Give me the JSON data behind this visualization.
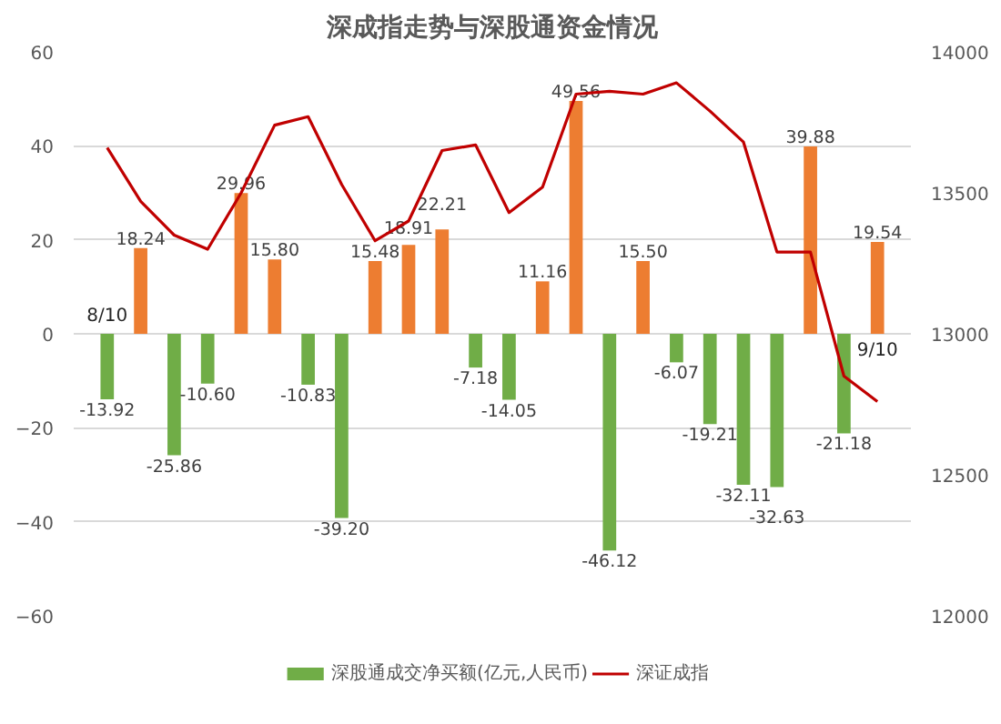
{
  "chart_data": {
    "type": "bar",
    "title": "深成指走势与深股通资金情况",
    "categories": [
      "8/10",
      null,
      null,
      null,
      null,
      null,
      null,
      null,
      null,
      null,
      null,
      null,
      null,
      null,
      null,
      null,
      null,
      null,
      null,
      null,
      null,
      null,
      null,
      "9/10"
    ],
    "series": [
      {
        "name": "深股通成交净买额(亿元,人民币)",
        "color": "#70ad47",
        "colors": [
          "#70ad47",
          "#ed7d31",
          "#70ad47",
          "#70ad47",
          "#ed7d31",
          "#ed7d31",
          "#70ad47",
          "#70ad47",
          "#ed7d31",
          "#ed7d31",
          "#ed7d31",
          "#70ad47",
          "#70ad47",
          "#ed7d31",
          "#ed7d31",
          "#70ad47",
          "#ed7d31",
          "#70ad47",
          "#70ad47",
          "#70ad47",
          "#70ad47",
          "#ed7d31",
          "#70ad47",
          "#ed7d31"
        ],
        "values": [
          -13.92,
          18.24,
          -25.86,
          -10.6,
          29.96,
          15.8,
          -10.83,
          -39.2,
          15.48,
          18.91,
          22.21,
          -7.18,
          -14.05,
          11.16,
          49.56,
          -46.12,
          15.5,
          -6.07,
          -19.21,
          -32.11,
          -32.63,
          39.88,
          -21.18,
          19.54
        ],
        "value_labels": [
          "-13.92",
          "18.24",
          "-25.86",
          "-10.60",
          "29.96",
          "15.80",
          "-10.83",
          "-39.20",
          "15.48",
          "18.91",
          "22.21",
          "-7.18",
          "-14.05",
          "11.16",
          "49.56",
          "-46.12",
          "15.50",
          "-6.07",
          "-19.21",
          "-32.11",
          "-32.63",
          "39.88",
          "-21.18",
          "19.54"
        ]
      },
      {
        "name": "深证成指",
        "type": "line",
        "axis": "y2",
        "color": "#c00000",
        "values": [
          13660,
          13470,
          13350,
          13300,
          13500,
          13740,
          13770,
          13530,
          13330,
          13400,
          13650,
          13670,
          13430,
          13520,
          13850,
          13860,
          13850,
          13890,
          13790,
          13680,
          13290,
          13290,
          12850,
          12760
        ]
      }
    ],
    "ylim": [
      -60,
      60
    ],
    "yticks": [
      -60,
      -40,
      -20,
      0,
      20,
      40,
      60
    ],
    "y2lim": [
      12000,
      14000
    ],
    "y2ticks": [
      12000,
      12500,
      13000,
      13500,
      14000
    ],
    "grid": "y",
    "legend": "bottom",
    "marker": "none",
    "line_style": "solid"
  }
}
